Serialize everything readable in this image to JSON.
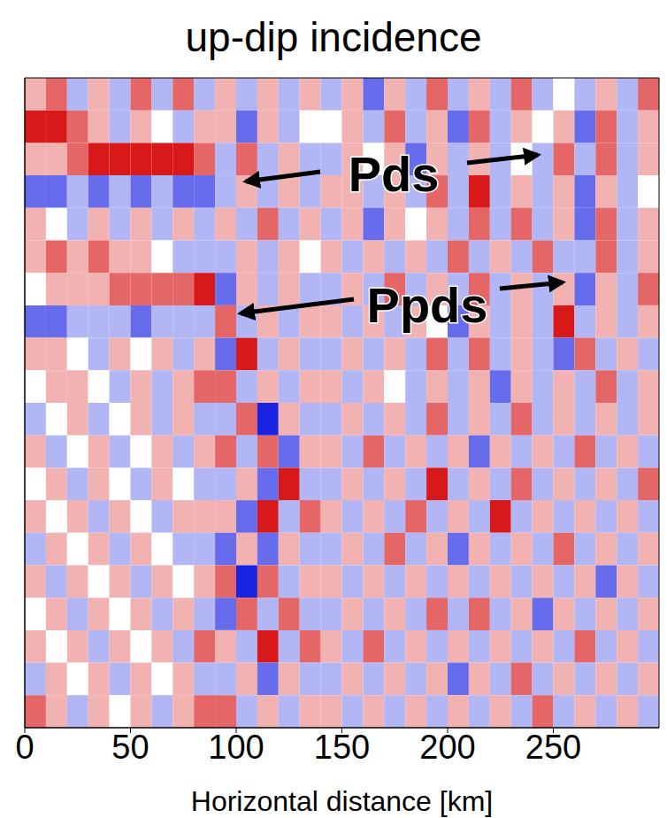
{
  "chart_data": {
    "type": "heatmap",
    "title": "up-dip incidence",
    "xlabel": "Horizontal distance [km]",
    "xlim": [
      0,
      300
    ],
    "ylim": [
      0,
      50
    ],
    "xticks": [
      0,
      50,
      100,
      150,
      200,
      250
    ],
    "yticks": [
      10,
      20,
      30,
      40
    ],
    "tick_labels": "x",
    "zlim": [
      -3,
      3
    ],
    "x": [
      5,
      15,
      25,
      35,
      45,
      55,
      65,
      75,
      85,
      95,
      105,
      115,
      125,
      135,
      145,
      155,
      165,
      175,
      185,
      195,
      205,
      215,
      225,
      235,
      245,
      255,
      265,
      275,
      285,
      295
    ],
    "y": [
      48.75,
      46.25,
      43.75,
      41.25,
      38.75,
      36.25,
      33.75,
      31.25,
      28.75,
      26.25,
      23.75,
      21.25,
      18.75,
      16.25,
      13.75,
      11.25,
      8.75,
      6.25,
      3.75,
      1.25
    ],
    "cells": [
      [
        1,
        2,
        -1,
        1,
        -1,
        2,
        -1,
        2,
        -1,
        1,
        -1,
        1,
        -1,
        1,
        -1,
        1,
        -2,
        1,
        -1,
        2,
        -1,
        1,
        -1,
        2,
        -1,
        0,
        -1,
        1,
        -1,
        2
      ],
      [
        3,
        3,
        2,
        1,
        -1,
        1,
        0,
        -1,
        1,
        1,
        -2,
        1,
        -1,
        0,
        0,
        1,
        -1,
        2,
        -1,
        1,
        -2,
        2,
        -1,
        1,
        0,
        1,
        -2,
        2,
        -1,
        1
      ],
      [
        1,
        1,
        2,
        3,
        3,
        3,
        3,
        3,
        2,
        -1,
        2,
        -1,
        1,
        -1,
        -1,
        1,
        0,
        1,
        -2,
        1,
        -1,
        1,
        -1,
        0,
        -1,
        2,
        -1,
        2,
        -1,
        1
      ],
      [
        -2,
        -2,
        -1,
        -2,
        -1,
        -2,
        -1,
        -2,
        -2,
        -1,
        1,
        -1,
        1,
        -1,
        1,
        1,
        -1,
        1,
        -1,
        2,
        -1,
        3,
        -1,
        1,
        -1,
        1,
        -2,
        1,
        -1,
        0
      ],
      [
        1,
        0,
        -1,
        1,
        -1,
        1,
        -1,
        1,
        -1,
        1,
        -1,
        2,
        -1,
        1,
        -1,
        1,
        -2,
        1,
        0,
        1,
        -1,
        2,
        -1,
        2,
        -1,
        1,
        -2,
        2,
        -1,
        1
      ],
      [
        1,
        2,
        1,
        2,
        1,
        1,
        0,
        -1,
        -1,
        -1,
        1,
        -1,
        1,
        0,
        1,
        -1,
        1,
        -1,
        1,
        -1,
        2,
        -1,
        1,
        -1,
        2,
        -1,
        -1,
        2,
        -1,
        1
      ],
      [
        0,
        1,
        1,
        1,
        2,
        2,
        2,
        2,
        3,
        -2,
        1,
        -1,
        1,
        -1,
        -1,
        1,
        -1,
        2,
        -1,
        1,
        -1,
        2,
        -1,
        1,
        -1,
        1,
        -2,
        1,
        -1,
        2
      ],
      [
        -2,
        -2,
        -1,
        -1,
        -1,
        -2,
        -1,
        -1,
        -1,
        2,
        -1,
        1,
        -1,
        1,
        1,
        -1,
        1,
        -1,
        1,
        0,
        -2,
        1,
        -1,
        1,
        -1,
        3,
        -1,
        1,
        -1,
        1
      ],
      [
        1,
        1,
        0,
        -1,
        1,
        0,
        1,
        -1,
        1,
        -2,
        3,
        -1,
        1,
        -1,
        -1,
        1,
        -1,
        1,
        -1,
        2,
        -1,
        2,
        -1,
        1,
        -1,
        -2,
        2,
        -1,
        1,
        -1
      ],
      [
        0,
        1,
        1,
        0,
        -1,
        1,
        -1,
        1,
        2,
        2,
        -1,
        1,
        -1,
        1,
        1,
        -1,
        1,
        0,
        -1,
        1,
        -1,
        1,
        -2,
        1,
        -1,
        1,
        -1,
        2,
        -1,
        1
      ],
      [
        -1,
        0,
        1,
        -1,
        0,
        1,
        -1,
        1,
        -1,
        -1,
        2,
        -3,
        1,
        -1,
        -1,
        1,
        -1,
        1,
        -1,
        2,
        -1,
        1,
        -1,
        2,
        -1,
        1,
        -1,
        1,
        -1,
        1
      ],
      [
        1,
        -1,
        0,
        1,
        -1,
        0,
        1,
        -1,
        1,
        2,
        -1,
        2,
        -2,
        1,
        1,
        -1,
        2,
        -1,
        1,
        -1,
        1,
        -2,
        1,
        -1,
        1,
        -1,
        2,
        -1,
        1,
        -1
      ],
      [
        0,
        1,
        -1,
        1,
        0,
        -1,
        1,
        0,
        -1,
        -1,
        1,
        -2,
        3,
        -1,
        -1,
        1,
        -1,
        1,
        -1,
        3,
        -1,
        1,
        -1,
        2,
        -1,
        1,
        -1,
        1,
        -1,
        2
      ],
      [
        1,
        0,
        1,
        -1,
        1,
        0,
        -1,
        1,
        1,
        1,
        -2,
        3,
        -1,
        2,
        1,
        -1,
        1,
        -1,
        2,
        -1,
        1,
        -1,
        3,
        -1,
        1,
        -1,
        1,
        -1,
        1,
        -1
      ],
      [
        -1,
        1,
        0,
        1,
        -1,
        1,
        0,
        -1,
        -1,
        -2,
        1,
        -2,
        1,
        -1,
        -1,
        1,
        -1,
        2,
        -1,
        1,
        -2,
        1,
        -1,
        1,
        -1,
        2,
        -1,
        1,
        -1,
        1
      ],
      [
        1,
        -1,
        1,
        0,
        1,
        -1,
        1,
        0,
        1,
        2,
        -3,
        2,
        -1,
        1,
        1,
        -1,
        1,
        -1,
        1,
        -1,
        1,
        -1,
        1,
        -1,
        1,
        -1,
        1,
        -2,
        1,
        -1
      ],
      [
        0,
        1,
        -1,
        1,
        0,
        1,
        -1,
        1,
        -1,
        -2,
        2,
        -1,
        2,
        -1,
        -1,
        1,
        -1,
        1,
        -1,
        2,
        -1,
        2,
        -1,
        1,
        -2,
        1,
        -1,
        1,
        -1,
        1
      ],
      [
        1,
        0,
        1,
        -1,
        1,
        0,
        1,
        -1,
        2,
        1,
        -1,
        3,
        -1,
        2,
        1,
        -1,
        2,
        -1,
        1,
        -1,
        1,
        -1,
        1,
        -1,
        1,
        -1,
        2,
        -1,
        1,
        -1
      ],
      [
        -1,
        1,
        0,
        1,
        -1,
        1,
        0,
        1,
        -1,
        -1,
        1,
        -2,
        1,
        -1,
        -1,
        1,
        -1,
        1,
        -1,
        1,
        -2,
        1,
        -1,
        2,
        -1,
        1,
        -1,
        1,
        -1,
        1
      ],
      [
        2,
        1,
        -1,
        1,
        0,
        1,
        -1,
        1,
        2,
        2,
        -1,
        1,
        -1,
        1,
        1,
        -1,
        1,
        -1,
        1,
        -1,
        1,
        -1,
        1,
        -1,
        2,
        -1,
        1,
        -1,
        1,
        -1
      ]
    ],
    "annotations": [
      {
        "text": "Pds"
      },
      {
        "text": "Ppds"
      }
    ]
  }
}
